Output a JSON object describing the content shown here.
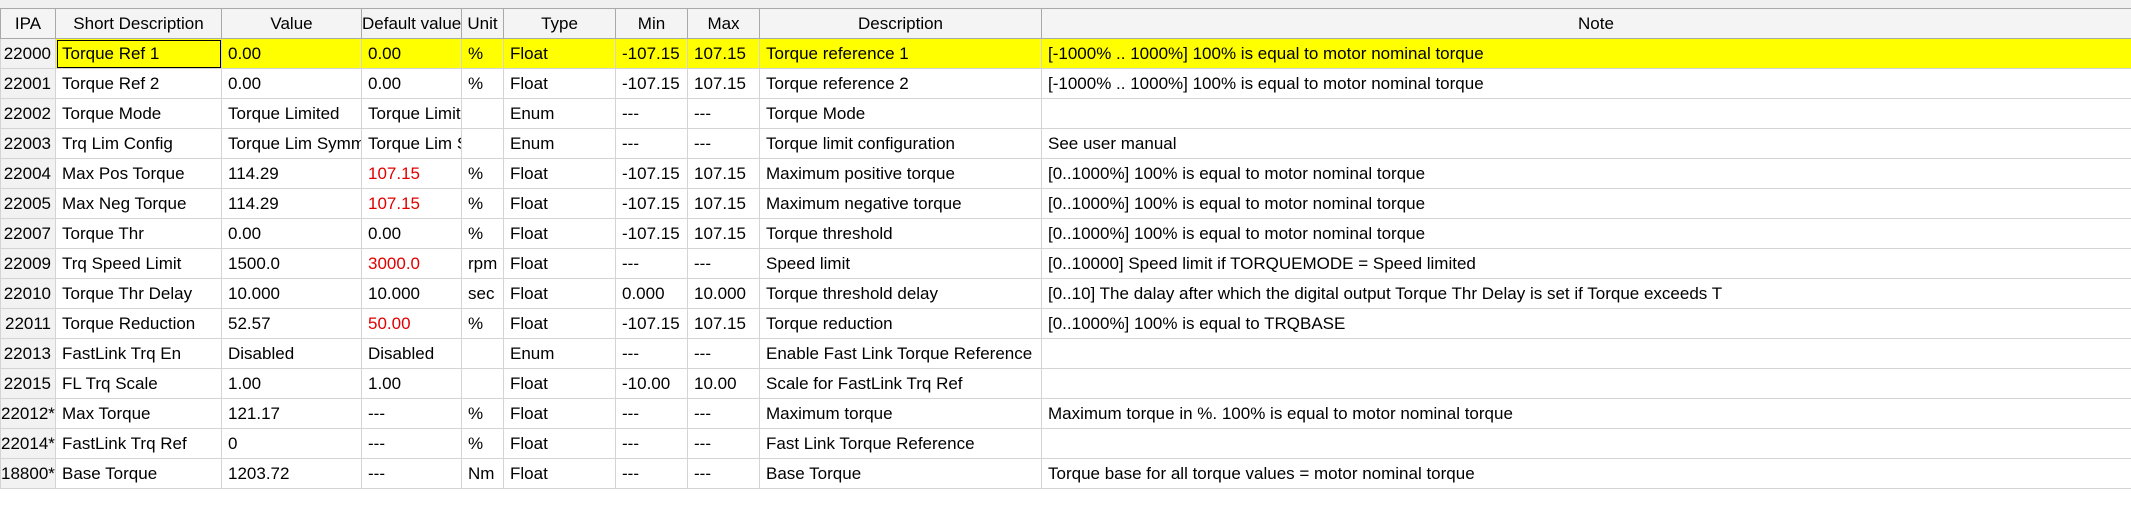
{
  "columns": [
    "IPA",
    "Short Description",
    "Value",
    "Default value",
    "Unit",
    "Type",
    "Min",
    "Max",
    "Description",
    "Note"
  ],
  "rows": [
    {
      "ipa": "22000",
      "short": "Torque Ref 1",
      "value": "0.00",
      "def": "0.00",
      "def_red": false,
      "unit": "%",
      "type": "Float",
      "min": "-107.15",
      "max": "107.15",
      "desc": "Torque reference 1",
      "note": "[-1000% .. 1000%] 100% is equal to motor nominal torque",
      "highlight": true
    },
    {
      "ipa": "22001",
      "short": "Torque Ref 2",
      "value": "0.00",
      "def": "0.00",
      "def_red": false,
      "unit": "%",
      "type": "Float",
      "min": "-107.15",
      "max": "107.15",
      "desc": "Torque reference 2",
      "note": "[-1000% .. 1000%] 100% is equal to motor nominal torque"
    },
    {
      "ipa": "22002",
      "short": "Torque Mode",
      "value": "Torque Limited",
      "def": "Torque Limited",
      "def_red": false,
      "unit": "",
      "type": "Enum",
      "min": "---",
      "max": "---",
      "desc": "Torque Mode",
      "note": ""
    },
    {
      "ipa": "22003",
      "short": "Trq Lim Config",
      "value": "Torque Lim Symm",
      "def": "Torque Lim Sym",
      "def_red": false,
      "unit": "",
      "type": "Enum",
      "min": "---",
      "max": "---",
      "desc": "Torque limit configuration",
      "note": "See user manual"
    },
    {
      "ipa": "22004",
      "short": "Max Pos Torque",
      "value": "114.29",
      "def": "107.15",
      "def_red": true,
      "unit": "%",
      "type": "Float",
      "min": "-107.15",
      "max": "107.15",
      "desc": "Maximum positive torque",
      "note": "[0..1000%] 100% is equal to motor nominal torque"
    },
    {
      "ipa": "22005",
      "short": "Max Neg Torque",
      "value": "114.29",
      "def": "107.15",
      "def_red": true,
      "unit": "%",
      "type": "Float",
      "min": "-107.15",
      "max": "107.15",
      "desc": "Maximum negative torque",
      "note": "[0..1000%] 100% is equal to motor nominal torque"
    },
    {
      "ipa": "22007",
      "short": "Torque Thr",
      "value": "0.00",
      "def": "0.00",
      "def_red": false,
      "unit": "%",
      "type": "Float",
      "min": "-107.15",
      "max": "107.15",
      "desc": "Torque threshold",
      "note": "[0..1000%] 100% is equal to motor nominal torque"
    },
    {
      "ipa": "22009",
      "short": "Trq Speed Limit",
      "value": "1500.0",
      "def": "3000.0",
      "def_red": true,
      "unit": "rpm",
      "type": "Float",
      "min": "---",
      "max": "---",
      "desc": "Speed limit",
      "note": "[0..10000] Speed limit if TORQUEMODE = Speed limited"
    },
    {
      "ipa": "22010",
      "short": "Torque Thr Delay",
      "value": "10.000",
      "def": "10.000",
      "def_red": false,
      "unit": "sec",
      "type": "Float",
      "min": "0.000",
      "max": "10.000",
      "desc": "Torque threshold delay",
      "note": "[0..10] The dalay after which the digital output Torque Thr Delay is set if Torque exceeds T"
    },
    {
      "ipa": "22011",
      "short": "Torque Reduction",
      "value": "52.57",
      "def": "50.00",
      "def_red": true,
      "unit": "%",
      "type": "Float",
      "min": "-107.15",
      "max": "107.15",
      "desc": "Torque reduction",
      "note": "[0..1000%] 100% is equal to TRQBASE"
    },
    {
      "ipa": "22013",
      "short": "FastLink Trq En",
      "value": "Disabled",
      "def": "Disabled",
      "def_red": false,
      "unit": "",
      "type": "Enum",
      "min": "---",
      "max": "---",
      "desc": "Enable Fast Link Torque Reference",
      "note": ""
    },
    {
      "ipa": "22015",
      "short": "FL Trq Scale",
      "value": "1.00",
      "def": "1.00",
      "def_red": false,
      "unit": "",
      "type": "Float",
      "min": "-10.00",
      "max": "10.00",
      "desc": "Scale for FastLink Trq Ref",
      "note": ""
    },
    {
      "ipa": "22012*",
      "short": "Max Torque",
      "value": "121.17",
      "def": "---",
      "def_red": false,
      "unit": "%",
      "type": "Float",
      "min": "---",
      "max": "---",
      "desc": "Maximum torque",
      "note": "Maximum torque in %. 100% is equal to motor nominal torque"
    },
    {
      "ipa": "22014*",
      "short": "FastLink Trq Ref",
      "value": "0",
      "def": "---",
      "def_red": false,
      "unit": "%",
      "type": "Float",
      "min": "---",
      "max": "---",
      "desc": "Fast Link Torque Reference",
      "note": ""
    },
    {
      "ipa": "18800*",
      "short": "Base Torque",
      "value": "1203.72",
      "def": "---",
      "def_red": false,
      "unit": "Nm",
      "type": "Float",
      "min": "---",
      "max": "---",
      "desc": "Base Torque",
      "note": "Torque base for all torque values = motor nominal torque"
    }
  ],
  "colors": {
    "highlight": "#ffff00",
    "modified_default": "#e00000"
  }
}
